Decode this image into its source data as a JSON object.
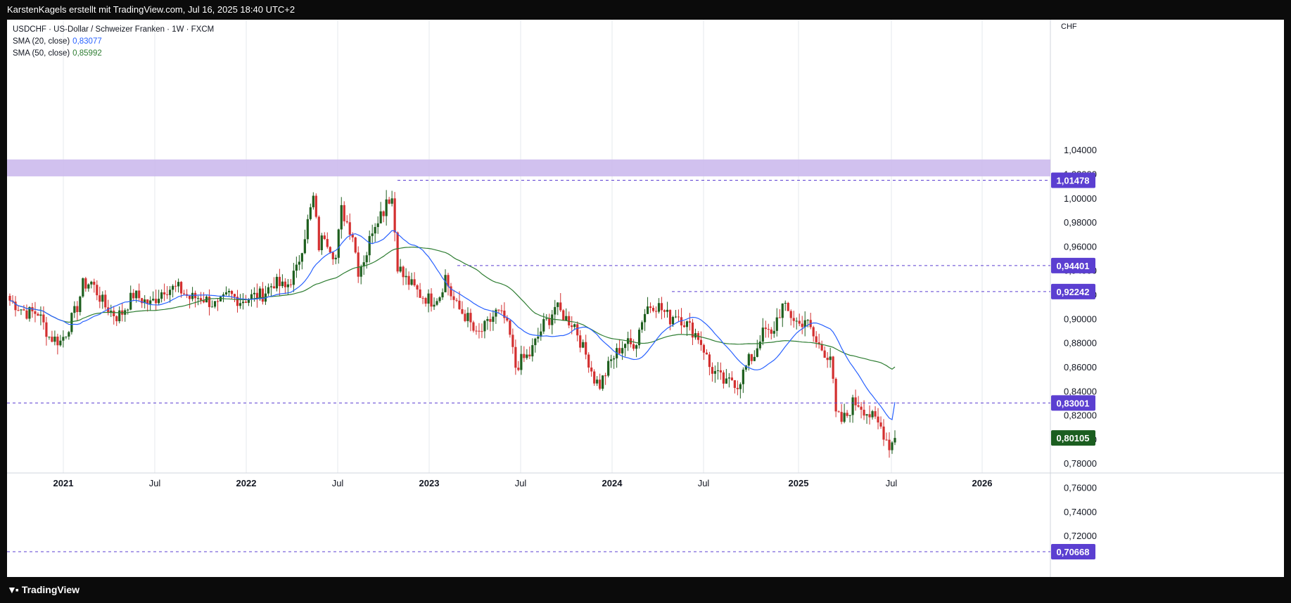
{
  "header": {
    "attribution": "KarstenKagels erstellt mit TradingView.com, Jul 16, 2025 18:40 UTC+2"
  },
  "legend": {
    "symbol_line": "USDCHF · US-Dollar / Schweizer Franken · 1W · FXCM",
    "sma20_label": "SMA (20, close)",
    "sma20_value": "0,83077",
    "sma50_label": "SMA (50, close)",
    "sma50_value": "0,85992"
  },
  "footer": {
    "brand": "TradingView"
  },
  "colors": {
    "up": "#1e5f1e",
    "down": "#d32f2f",
    "sma20": "#2962ff",
    "sma50": "#2e7d32",
    "level": "#5b3fd1",
    "zone": "#c9b6ec",
    "last_price_bg": "#1b5e20"
  },
  "chart_data": {
    "type": "candlestick",
    "currency": "CHF",
    "ylim": [
      0.7,
      1.06
    ],
    "y_ticks": [
      "0,72000",
      "0,74000",
      "0,76000",
      "0,78000",
      "0,80000",
      "0,82000",
      "0,84000",
      "0,86000",
      "0,88000",
      "0,90000",
      "0,92000",
      "0,94000",
      "0,96000",
      "0,98000",
      "1,00000",
      "1,02000",
      "1,04000"
    ],
    "x_ticks": [
      "2021",
      "Jul",
      "2022",
      "Jul",
      "2023",
      "Jul",
      "2024",
      "Jul",
      "2025",
      "Jul",
      "2026"
    ],
    "resistance_zone": [
      1.018,
      1.032
    ],
    "horizontal_levels": [
      {
        "value": 1.01478,
        "label": "1,01478"
      },
      {
        "value": 0.94401,
        "label": "0,94401"
      },
      {
        "value": 0.92242,
        "label": "0,92242"
      },
      {
        "value": 0.83001,
        "label": "0,83001"
      },
      {
        "value": 0.70668,
        "label": "0,70668"
      }
    ],
    "last_price": {
      "value": 0.80105,
      "label": "0,80105"
    },
    "close_anchors": [
      [
        0,
        0.915
      ],
      [
        6,
        0.905
      ],
      [
        10,
        0.905
      ],
      [
        14,
        0.885
      ],
      [
        18,
        0.881
      ],
      [
        20,
        0.889
      ],
      [
        24,
        0.91
      ],
      [
        26,
        0.928
      ],
      [
        29,
        0.93
      ],
      [
        34,
        0.91
      ],
      [
        38,
        0.902
      ],
      [
        40,
        0.905
      ],
      [
        44,
        0.92
      ],
      [
        50,
        0.912
      ],
      [
        55,
        0.925
      ],
      [
        60,
        0.925
      ],
      [
        64,
        0.917
      ],
      [
        68,
        0.918
      ],
      [
        74,
        0.91
      ],
      [
        78,
        0.92
      ],
      [
        82,
        0.915
      ],
      [
        86,
        0.918
      ],
      [
        90,
        0.92
      ],
      [
        94,
        0.93
      ],
      [
        98,
        0.925
      ],
      [
        102,
        0.94
      ],
      [
        104,
        0.96
      ],
      [
        106,
        0.98
      ],
      [
        108,
        1.0
      ],
      [
        110,
        0.96
      ],
      [
        112,
        0.97
      ],
      [
        114,
        0.96
      ],
      [
        116,
        0.95
      ],
      [
        118,
        0.99
      ],
      [
        122,
        0.97
      ],
      [
        124,
        0.94
      ],
      [
        127,
        0.955
      ],
      [
        129,
        0.975
      ],
      [
        131,
        0.985
      ],
      [
        133,
        0.99
      ],
      [
        134,
        1.0
      ],
      [
        136,
        1.0
      ],
      [
        138,
        0.945
      ],
      [
        140,
        0.935
      ],
      [
        142,
        0.93
      ],
      [
        146,
        0.92
      ],
      [
        150,
        0.915
      ],
      [
        153,
        0.92
      ],
      [
        155,
        0.935
      ],
      [
        157,
        0.92
      ],
      [
        159,
        0.91
      ],
      [
        163,
        0.9
      ],
      [
        166,
        0.885
      ],
      [
        170,
        0.895
      ],
      [
        173,
        0.905
      ],
      [
        176,
        0.9
      ],
      [
        178,
        0.885
      ],
      [
        180,
        0.86
      ],
      [
        182,
        0.865
      ],
      [
        185,
        0.87
      ],
      [
        188,
        0.885
      ],
      [
        190,
        0.895
      ],
      [
        192,
        0.9
      ],
      [
        194,
        0.91
      ],
      [
        196,
        0.905
      ],
      [
        198,
        0.9
      ],
      [
        201,
        0.895
      ],
      [
        204,
        0.875
      ],
      [
        206,
        0.865
      ],
      [
        208,
        0.85
      ],
      [
        210,
        0.845
      ],
      [
        212,
        0.855
      ],
      [
        214,
        0.865
      ],
      [
        217,
        0.875
      ],
      [
        219,
        0.88
      ],
      [
        221,
        0.878
      ],
      [
        223,
        0.882
      ],
      [
        225,
        0.9
      ],
      [
        227,
        0.91
      ],
      [
        229,
        0.912
      ],
      [
        231,
        0.91
      ],
      [
        233,
        0.905
      ],
      [
        235,
        0.9
      ],
      [
        237,
        0.905
      ],
      [
        239,
        0.9
      ],
      [
        241,
        0.895
      ],
      [
        243,
        0.89
      ],
      [
        245,
        0.885
      ],
      [
        247,
        0.875
      ],
      [
        249,
        0.86
      ],
      [
        251,
        0.855
      ],
      [
        253,
        0.85
      ],
      [
        255,
        0.845
      ],
      [
        257,
        0.85
      ],
      [
        259,
        0.845
      ],
      [
        261,
        0.855
      ],
      [
        263,
        0.865
      ],
      [
        265,
        0.87
      ],
      [
        267,
        0.885
      ],
      [
        269,
        0.89
      ],
      [
        271,
        0.885
      ],
      [
        273,
        0.9
      ],
      [
        275,
        0.91
      ],
      [
        277,
        0.905
      ],
      [
        279,
        0.9
      ],
      [
        281,
        0.895
      ],
      [
        283,
        0.9
      ],
      [
        285,
        0.89
      ],
      [
        287,
        0.88
      ],
      [
        289,
        0.875
      ],
      [
        291,
        0.87
      ],
      [
        292,
        0.87
      ],
      [
        294,
        0.82
      ],
      [
        296,
        0.815
      ],
      [
        298,
        0.82
      ],
      [
        300,
        0.83
      ],
      [
        302,
        0.83
      ],
      [
        304,
        0.825
      ],
      [
        306,
        0.82
      ],
      [
        308,
        0.815
      ],
      [
        310,
        0.81
      ],
      [
        312,
        0.8
      ],
      [
        313,
        0.795
      ],
      [
        315,
        0.8
      ]
    ],
    "sma_series": [
      {
        "name": "SMA (20, close)",
        "final": 0.83077
      },
      {
        "name": "SMA (50, close)",
        "final": 0.85992
      }
    ]
  }
}
